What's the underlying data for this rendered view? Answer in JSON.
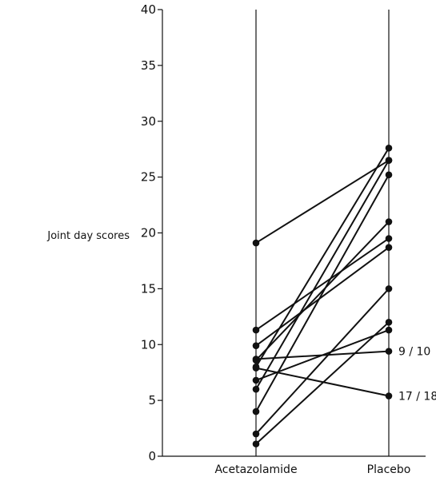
{
  "chart_data": {
    "type": "line",
    "title": "",
    "ylabel": "Joint day scores",
    "xlabel": "",
    "ylim": [
      0,
      40
    ],
    "yticks": [
      0,
      5,
      10,
      15,
      20,
      25,
      30,
      35,
      40
    ],
    "categories": [
      "Acetazolamide",
      "Placebo"
    ],
    "grid": false,
    "legend": "none",
    "series": [
      {
        "values": [
          19.1,
          26.5
        ]
      },
      {
        "values": [
          11.3,
          19.5
        ]
      },
      {
        "values": [
          9.9,
          18.7
        ]
      },
      {
        "values": [
          8.7,
          9.4
        ],
        "label": "9 / 10"
      },
      {
        "values": [
          8.6,
          21.0
        ]
      },
      {
        "values": [
          8.0,
          27.6
        ]
      },
      {
        "values": [
          7.9,
          5.4
        ],
        "label": "17 / 18"
      },
      {
        "values": [
          6.8,
          11.3
        ]
      },
      {
        "values": [
          6.0,
          26.5
        ]
      },
      {
        "values": [
          4.0,
          25.2
        ]
      },
      {
        "values": [
          2.0,
          15.0
        ]
      },
      {
        "values": [
          1.1,
          12.0
        ]
      }
    ]
  }
}
